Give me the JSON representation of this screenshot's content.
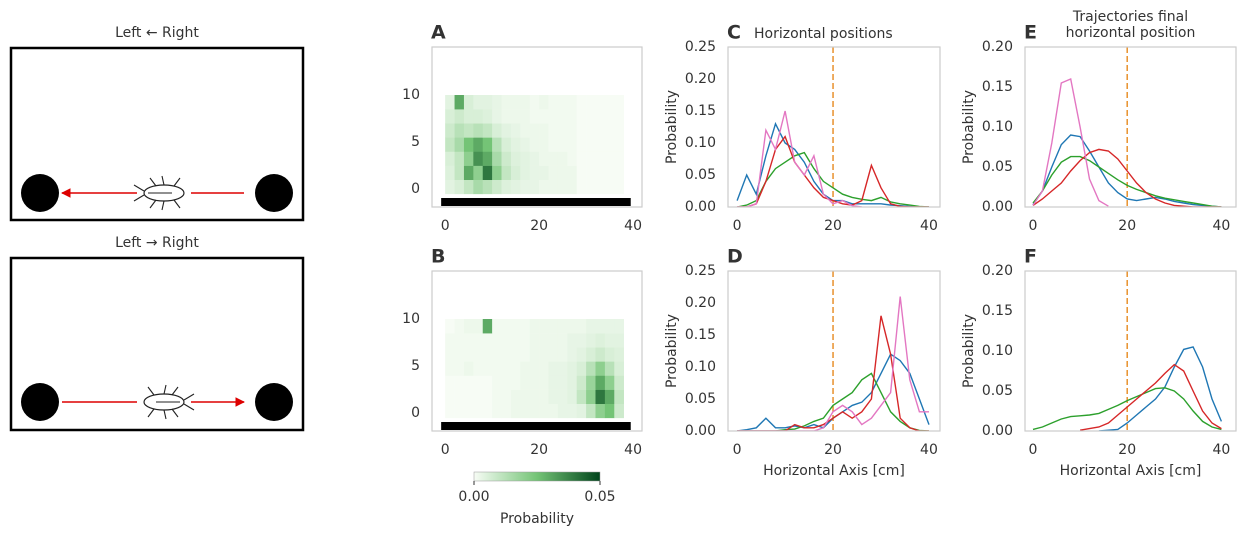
{
  "diagrams": [
    {
      "title": "Left ← Right"
    },
    {
      "title": "Left → Right"
    }
  ],
  "chart_data": [
    {
      "type": "heatmap",
      "panel_label": "A",
      "xlim": [
        -2.8,
        41.9
      ],
      "ylim": [
        -1.9,
        15.1
      ],
      "xticks": [
        0,
        20,
        40
      ],
      "yticks": [
        0,
        5,
        10
      ],
      "xedges": [
        0,
        2,
        4,
        6,
        8,
        10,
        12,
        14,
        16,
        18,
        20,
        22,
        24,
        26,
        28,
        30,
        32,
        34,
        36,
        38
      ],
      "yedges": [
        -0.5,
        1,
        2.5,
        4,
        5.5,
        7,
        8.5,
        10
      ],
      "matrix": [
        [
          0.004,
          0.006,
          0.01,
          0.015,
          0.012,
          0.008,
          0.005,
          0.004,
          0.003,
          0.003,
          0.002,
          0.002,
          0.002,
          0.002,
          0,
          0,
          0,
          0,
          0
        ],
        [
          0.005,
          0.01,
          0.03,
          0.02,
          0.04,
          0.02,
          0.01,
          0.006,
          0.004,
          0.003,
          0.003,
          0.002,
          0.002,
          0.002,
          0,
          0,
          0,
          0,
          0
        ],
        [
          0.006,
          0.01,
          0.02,
          0.035,
          0.03,
          0.015,
          0.008,
          0.005,
          0.004,
          0.003,
          0.002,
          0.002,
          0.002,
          0.001,
          0,
          0,
          0,
          0,
          0
        ],
        [
          0.01,
          0.015,
          0.025,
          0.03,
          0.025,
          0.012,
          0.006,
          0.004,
          0.003,
          0.002,
          0.002,
          0.001,
          0.001,
          0.001,
          0,
          0,
          0,
          0,
          0
        ],
        [
          0.008,
          0.012,
          0.01,
          0.012,
          0.01,
          0.006,
          0.004,
          0.003,
          0.002,
          0.002,
          0.002,
          0.001,
          0.001,
          0.001,
          0,
          0,
          0,
          0,
          0
        ],
        [
          0.006,
          0.008,
          0.006,
          0.006,
          0.005,
          0.003,
          0.002,
          0.002,
          0.002,
          0.001,
          0.001,
          0.001,
          0.001,
          0.001,
          0,
          0,
          0,
          0,
          0
        ],
        [
          0.004,
          0.03,
          0.006,
          0.004,
          0.004,
          0.003,
          0.002,
          0.002,
          0.002,
          0.001,
          0.002,
          0.001,
          0.001,
          0.001,
          0,
          0,
          0,
          0,
          0
        ]
      ]
    },
    {
      "type": "heatmap",
      "panel_label": "B",
      "xlim": [
        -2.8,
        41.9
      ],
      "ylim": [
        -1.9,
        15.1
      ],
      "xticks": [
        0,
        20,
        40
      ],
      "yticks": [
        0,
        5,
        10
      ],
      "xedges": [
        0,
        2,
        4,
        6,
        8,
        10,
        12,
        14,
        16,
        18,
        20,
        22,
        24,
        26,
        28,
        30,
        32,
        34,
        36,
        38
      ],
      "yedges": [
        -0.5,
        1,
        2.5,
        4,
        5.5,
        7,
        8.5,
        10
      ],
      "matrix": [
        [
          0,
          0,
          0,
          0,
          0,
          0.001,
          0.001,
          0.002,
          0.002,
          0.002,
          0.002,
          0.002,
          0.003,
          0.003,
          0.004,
          0.01,
          0.02,
          0.025,
          0.008
        ],
        [
          0,
          0,
          0,
          0,
          0,
          0.001,
          0.001,
          0.002,
          0.002,
          0.002,
          0.002,
          0.003,
          0.003,
          0.004,
          0.01,
          0.02,
          0.04,
          0.03,
          0.01
        ],
        [
          0,
          0,
          0,
          0,
          0,
          0.001,
          0.001,
          0.001,
          0.002,
          0.002,
          0.002,
          0.003,
          0.003,
          0.004,
          0.008,
          0.018,
          0.03,
          0.02,
          0.008
        ],
        [
          0.001,
          0.001,
          0.002,
          0.001,
          0.001,
          0.001,
          0.001,
          0.001,
          0.002,
          0.002,
          0.002,
          0.003,
          0.003,
          0.004,
          0.006,
          0.012,
          0.02,
          0.012,
          0.006
        ],
        [
          0.001,
          0.001,
          0.001,
          0.001,
          0.001,
          0.001,
          0.001,
          0.001,
          0.001,
          0.002,
          0.002,
          0.002,
          0.002,
          0.003,
          0.004,
          0.006,
          0.008,
          0.006,
          0.005
        ],
        [
          0.001,
          0.001,
          0.001,
          0.001,
          0.001,
          0.001,
          0.001,
          0.001,
          0.001,
          0.002,
          0.002,
          0.002,
          0.002,
          0.003,
          0.003,
          0.004,
          0.005,
          0.004,
          0.004
        ],
        [
          0,
          0.001,
          0.002,
          0.002,
          0.03,
          0.001,
          0.001,
          0.001,
          0.001,
          0.002,
          0.002,
          0.002,
          0.002,
          0.002,
          0.002,
          0.003,
          0.003,
          0.003,
          0.003
        ]
      ]
    },
    {
      "type": "line",
      "panel_label": "C",
      "title": "Horizontal positions",
      "y_label": "Probability",
      "xlim": [
        -1.9,
        42.3
      ],
      "ylim": [
        0,
        0.25
      ],
      "xticks": [
        0,
        20,
        40
      ],
      "yticks": [
        {
          "value": 0,
          "label": "0.00"
        },
        {
          "value": 0.05,
          "label": "0.05"
        },
        {
          "value": 0.1,
          "label": "0.10"
        },
        {
          "value": 0.15,
          "label": "0.15"
        },
        {
          "value": 0.2,
          "label": "0.20"
        },
        {
          "value": 0.25,
          "label": "0.25"
        }
      ],
      "vline": 20,
      "vline_color": "#e8912d",
      "x": [
        0,
        2,
        4,
        6,
        8,
        10,
        12,
        14,
        16,
        18,
        20,
        22,
        24,
        26,
        28,
        30,
        32,
        34,
        36,
        38,
        40
      ],
      "series": [
        {
          "color": "#1f77b4",
          "values": [
            0.01,
            0.05,
            0.02,
            0.08,
            0.13,
            0.1,
            0.09,
            0.07,
            0.04,
            0.02,
            0.01,
            0.01,
            0.005,
            0.005,
            0.005,
            0.005,
            0.003,
            0.002,
            0.001,
            0,
            0
          ]
        },
        {
          "color": "#2ca02c",
          "values": [
            0,
            0.003,
            0.01,
            0.04,
            0.06,
            0.07,
            0.08,
            0.085,
            0.06,
            0.04,
            0.03,
            0.02,
            0.015,
            0.012,
            0.01,
            0.015,
            0.008,
            0.005,
            0.003,
            0.001,
            0
          ]
        },
        {
          "color": "#d62728",
          "values": [
            0,
            0,
            0.005,
            0.04,
            0.09,
            0.11,
            0.07,
            0.05,
            0.03,
            0.015,
            0.01,
            0.005,
            0.003,
            0.01,
            0.065,
            0.03,
            0.005,
            0.001,
            0,
            0,
            0
          ]
        },
        {
          "color": "#e377c2",
          "values": [
            0,
            0,
            0.005,
            0.12,
            0.09,
            0.15,
            0.07,
            0.05,
            0.08,
            0.02,
            0.005,
            0.01,
            0.002,
            0,
            null,
            null,
            null,
            null,
            null,
            null,
            null
          ]
        }
      ]
    },
    {
      "type": "line",
      "panel_label": "D",
      "y_label": "Probability",
      "x_label": "Horizontal Axis [cm]",
      "xlim": [
        -1.9,
        42.3
      ],
      "ylim": [
        0,
        0.25
      ],
      "xticks": [
        0,
        20,
        40
      ],
      "yticks": [
        {
          "value": 0,
          "label": "0.00"
        },
        {
          "value": 0.05,
          "label": "0.05"
        },
        {
          "value": 0.1,
          "label": "0.10"
        },
        {
          "value": 0.15,
          "label": "0.15"
        },
        {
          "value": 0.2,
          "label": "0.20"
        },
        {
          "value": 0.25,
          "label": "0.25"
        }
      ],
      "vline": 20,
      "vline_color": "#e8912d",
      "x": [
        0,
        2,
        4,
        6,
        8,
        10,
        12,
        14,
        16,
        18,
        20,
        22,
        24,
        26,
        28,
        30,
        32,
        34,
        36,
        38,
        40
      ],
      "series": [
        {
          "color": "#1f77b4",
          "values": [
            0,
            0.002,
            0.005,
            0.02,
            0.005,
            0.005,
            0.008,
            0.005,
            0.01,
            0.005,
            0.02,
            0.03,
            0.04,
            0.045,
            0.06,
            0.09,
            0.12,
            0.11,
            0.09,
            0.05,
            0.01
          ]
        },
        {
          "color": "#2ca02c",
          "values": [
            0,
            0,
            0,
            0,
            0,
            0.002,
            0.003,
            0.008,
            0.015,
            0.02,
            0.04,
            0.05,
            0.06,
            0.08,
            0.09,
            0.06,
            0.03,
            0.015,
            0.005,
            0.001,
            0
          ]
        },
        {
          "color": "#d62728",
          "values": [
            0,
            0,
            0,
            0,
            0,
            0,
            0.01,
            0.005,
            0.005,
            0.01,
            0.02,
            0.03,
            0.02,
            0.03,
            0.05,
            0.18,
            0.12,
            0.02,
            0.005,
            0,
            0
          ]
        },
        {
          "color": "#e377c2",
          "values": [
            0,
            0,
            0,
            0,
            0,
            0,
            0,
            0,
            0,
            0.005,
            0.03,
            0.04,
            0.03,
            0.01,
            0.02,
            0.04,
            0.06,
            0.21,
            0.08,
            0.03,
            0.03
          ]
        }
      ]
    },
    {
      "type": "line",
      "panel_label": "E",
      "title": [
        "Trajectories final",
        "horizontal position"
      ],
      "y_label": "Probability",
      "xlim": [
        -1.7,
        43.1
      ],
      "ylim": [
        0,
        0.2
      ],
      "xticks": [
        0,
        20,
        40
      ],
      "yticks": [
        {
          "value": 0,
          "label": "0.00"
        },
        {
          "value": 0.05,
          "label": "0.05"
        },
        {
          "value": 0.1,
          "label": "0.10"
        },
        {
          "value": 0.15,
          "label": "0.15"
        },
        {
          "value": 0.2,
          "label": "0.20"
        }
      ],
      "vline": 20,
      "vline_color": "#e8912d",
      "x": [
        0,
        2,
        4,
        6,
        8,
        10,
        12,
        14,
        16,
        18,
        20,
        22,
        24,
        26,
        28,
        30,
        32,
        34,
        36,
        38,
        40
      ],
      "series": [
        {
          "color": "#1f77b4",
          "values": [
            0.003,
            0.02,
            0.05,
            0.078,
            0.09,
            0.088,
            0.07,
            0.05,
            0.03,
            0.018,
            0.01,
            0.008,
            0.01,
            0.012,
            0.01,
            0.007,
            0.005,
            0.003,
            0.002,
            0.001,
            0
          ]
        },
        {
          "color": "#2ca02c",
          "values": [
            0.005,
            0.02,
            0.04,
            0.056,
            0.063,
            0.063,
            0.058,
            0.05,
            0.042,
            0.034,
            0.027,
            0.022,
            0.018,
            0.014,
            0.011,
            0.009,
            0.007,
            0.005,
            0.003,
            0.001,
            0
          ]
        },
        {
          "color": "#d62728",
          "values": [
            0.002,
            0.01,
            0.02,
            0.03,
            0.045,
            0.058,
            0.068,
            0.072,
            0.07,
            0.06,
            0.045,
            0.03,
            0.018,
            0.01,
            0.005,
            0.002,
            0.001,
            0,
            0,
            0,
            0
          ]
        },
        {
          "color": "#e377c2",
          "values": [
            0.002,
            0.02,
            0.08,
            0.155,
            0.16,
            0.1,
            0.035,
            0.008,
            0.001,
            null,
            null,
            null,
            null,
            null,
            null,
            null,
            null,
            null,
            null,
            null,
            null
          ]
        }
      ]
    },
    {
      "type": "line",
      "panel_label": "F",
      "y_label": "Probability",
      "x_label": "Horizontal Axis [cm]",
      "xlim": [
        -1.7,
        43.1
      ],
      "ylim": [
        0,
        0.2
      ],
      "xticks": [
        0,
        20,
        40
      ],
      "yticks": [
        {
          "value": 0,
          "label": "0.00"
        },
        {
          "value": 0.05,
          "label": "0.05"
        },
        {
          "value": 0.1,
          "label": "0.10"
        },
        {
          "value": 0.15,
          "label": "0.15"
        },
        {
          "value": 0.2,
          "label": "0.20"
        }
      ],
      "vline": 20,
      "vline_color": "#e8912d",
      "x": [
        0,
        2,
        4,
        6,
        8,
        10,
        12,
        14,
        16,
        18,
        20,
        22,
        24,
        26,
        28,
        30,
        32,
        34,
        36,
        38,
        40
      ],
      "series": [
        {
          "color": "#1f77b4",
          "values": [
            null,
            null,
            null,
            null,
            null,
            null,
            null,
            0,
            0.001,
            0.002,
            0.01,
            0.02,
            0.03,
            0.04,
            0.055,
            0.08,
            0.102,
            0.105,
            0.08,
            0.04,
            0.012
          ]
        },
        {
          "color": "#2ca02c",
          "values": [
            0.002,
            0.005,
            0.01,
            0.015,
            0.018,
            0.019,
            0.02,
            0.022,
            0.027,
            0.032,
            0.038,
            0.043,
            0.048,
            0.053,
            0.054,
            0.05,
            0.04,
            0.025,
            0.012,
            0.005,
            0.002
          ]
        },
        {
          "color": "#d62728",
          "values": [
            null,
            null,
            null,
            null,
            null,
            0.001,
            0.003,
            0.005,
            0.01,
            0.02,
            0.03,
            0.04,
            0.05,
            0.06,
            0.072,
            0.083,
            0.075,
            0.05,
            0.025,
            0.01,
            0.003
          ]
        }
      ]
    },
    {
      "type": "colorbar",
      "label": "Probability",
      "clim": [
        0,
        0.05
      ],
      "colors": [
        "#f7fcf5",
        "#74c476",
        "#00441b"
      ],
      "ticks": [
        {
          "value": 0,
          "label": "0.00"
        },
        {
          "value": 0.05,
          "label": "0.05"
        }
      ]
    }
  ]
}
